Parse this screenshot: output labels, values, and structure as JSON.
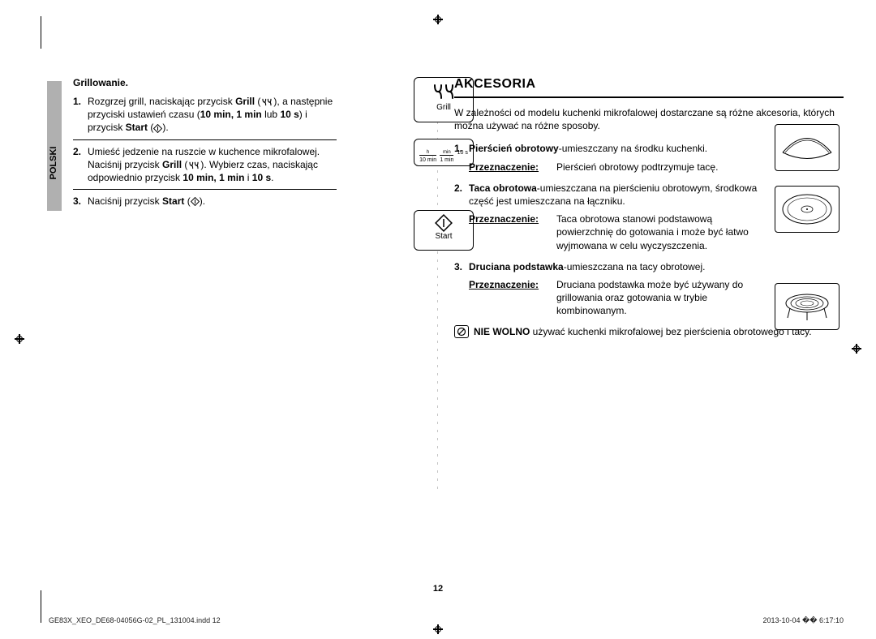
{
  "language_tab": "POLSKI",
  "left": {
    "subhead": "Grillowanie.",
    "steps": [
      {
        "num": "1.",
        "text_parts": [
          "Rozgrzej grill, naciskając przycisk ",
          {
            "b": "Grill"
          },
          " (",
          {
            "icon": "grill"
          },
          "), a następnie przyciski ustawień czasu (",
          {
            "b": "10 min, 1 min"
          },
          " lub ",
          {
            "b": "10 s"
          },
          ") i przycisk ",
          {
            "b": "Start"
          },
          " (",
          {
            "icon": "start"
          },
          ")."
        ]
      },
      {
        "num": "2.",
        "text_parts": [
          "Umieść jedzenie na ruszcie w kuchence mikrofalowej. Naciśnij przycisk ",
          {
            "b": "Grill"
          },
          " (",
          {
            "icon": "grill"
          },
          "). Wybierz czas, naciskając odpowiednio przycisk ",
          {
            "b": "10 min, 1 min"
          },
          " i ",
          {
            "b": "10 s"
          },
          "."
        ]
      },
      {
        "num": "3.",
        "text_parts": [
          "Naciśnij przycisk ",
          {
            "b": "Start"
          },
          " (",
          {
            "icon": "start"
          },
          ")."
        ]
      }
    ],
    "grill_label": "Grill",
    "start_label": "Start",
    "time_box": {
      "c1_top": "h",
      "c1_bot": "10 min",
      "c2_top": "min",
      "c2_bot": "1 min",
      "c3": "10 s"
    }
  },
  "right": {
    "heading": "AKCESORIA",
    "intro": "W zależności od modelu kuchenki mikrofalowej dostarczane są różne akcesoria, których można używać na różne sposoby.",
    "items": [
      {
        "num": "1.",
        "title": "Pierścień obrotowy",
        "desc": "-umieszczany na środku kuchenki.",
        "purpose_label": "Przeznaczenie:",
        "purpose_text": "Pierścień obrotowy podtrzymuje tacę."
      },
      {
        "num": "2.",
        "title": "Taca obrotowa",
        "desc": "-umieszczana na pierścieniu obrotowym, środkowa część jest umieszczana na łączniku.",
        "purpose_label": "Przeznaczenie:",
        "purpose_text": "Taca obrotowa stanowi podstawową powierzchnię do gotowania i może być łatwo wyjmowana w celu wyczyszczenia."
      },
      {
        "num": "3.",
        "title": "Druciana podstawka",
        "desc": "-umieszczana na tacy obrotowej.",
        "purpose_label": "Przeznaczenie:",
        "purpose_text": "Druciana podstawka może być używany do grillowania oraz gotowania w trybie kombinowanym."
      }
    ],
    "warning_parts": [
      {
        "b": "NIE WOLNO"
      },
      " używać kuchenki mikrofalowej bez pierścienia obrotowego i tacy."
    ]
  },
  "page_number": "12",
  "footer_left": "GE83X_XEO_DE68-04056G-02_PL_131004.indd   12",
  "footer_right": "2013-10-04   �� 6:17:10",
  "colors": {
    "tab_bg": "#b0b0b0",
    "text": "#000000",
    "bg": "#ffffff"
  }
}
